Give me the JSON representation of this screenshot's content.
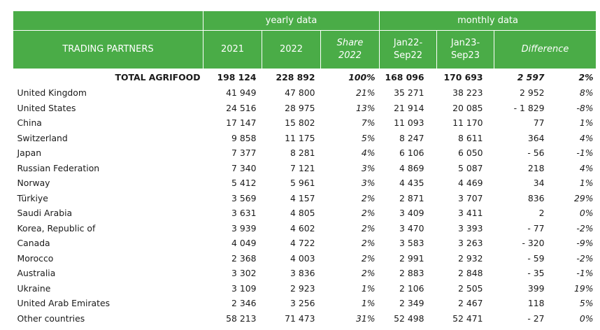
{
  "header": {
    "group_yearly": "yearly data",
    "group_monthly": "monthly data",
    "col_partners": "TRADING PARTNERS",
    "col_2021": "2021",
    "col_2022": "2022",
    "col_share_l1": "Share",
    "col_share_l2": "2022",
    "col_jan22_l1": "Jan22-",
    "col_jan22_l2": "Sep22",
    "col_jan23_l1": "Jan23-",
    "col_jan23_l2": "Sep23",
    "col_difference": "Difference"
  },
  "total": {
    "name": "TOTAL AGRIFOOD",
    "y2021": "198 124",
    "y2022": "228 892",
    "share": "100%",
    "m22": "168 096",
    "m23": "170 693",
    "diff": "2 597",
    "pct": "2%"
  },
  "rows": [
    {
      "name": "United Kingdom",
      "y2021": "41 949",
      "y2022": "47 800",
      "share": "21%",
      "m22": "35 271",
      "m23": "38 223",
      "diff": "2 952",
      "pct": "8%"
    },
    {
      "name": "United States",
      "y2021": "24 516",
      "y2022": "28 975",
      "share": "13%",
      "m22": "21 914",
      "m23": "20 085",
      "diff": "- 1 829",
      "pct": "-8%"
    },
    {
      "name": "China",
      "y2021": "17 147",
      "y2022": "15 802",
      "share": "7%",
      "m22": "11 093",
      "m23": "11 170",
      "diff": "77",
      "pct": "1%"
    },
    {
      "name": "Switzerland",
      "y2021": "9 858",
      "y2022": "11 175",
      "share": "5%",
      "m22": "8 247",
      "m23": "8 611",
      "diff": "364",
      "pct": "4%"
    },
    {
      "name": "Japan",
      "y2021": "7 377",
      "y2022": "8 281",
      "share": "4%",
      "m22": "6 106",
      "m23": "6 050",
      "diff": "- 56",
      "pct": "-1%"
    },
    {
      "name": "Russian Federation",
      "y2021": "7 340",
      "y2022": "7 121",
      "share": "3%",
      "m22": "4 869",
      "m23": "5 087",
      "diff": "218",
      "pct": "4%"
    },
    {
      "name": "Norway",
      "y2021": "5 412",
      "y2022": "5 961",
      "share": "3%",
      "m22": "4 435",
      "m23": "4 469",
      "diff": "34",
      "pct": "1%"
    },
    {
      "name": "Türkiye",
      "y2021": "3 569",
      "y2022": "4 157",
      "share": "2%",
      "m22": "2 871",
      "m23": "3 707",
      "diff": "836",
      "pct": "29%"
    },
    {
      "name": "Saudi Arabia",
      "y2021": "3 631",
      "y2022": "4 805",
      "share": "2%",
      "m22": "3 409",
      "m23": "3 411",
      "diff": "2",
      "pct": "0%"
    },
    {
      "name": "Korea, Republic of",
      "y2021": "3 939",
      "y2022": "4 602",
      "share": "2%",
      "m22": "3 470",
      "m23": "3 393",
      "diff": "- 77",
      "pct": "-2%"
    },
    {
      "name": "Canada",
      "y2021": "4 049",
      "y2022": "4 722",
      "share": "2%",
      "m22": "3 583",
      "m23": "3 263",
      "diff": "- 320",
      "pct": "-9%"
    },
    {
      "name": "Morocco",
      "y2021": "2 368",
      "y2022": "4 003",
      "share": "2%",
      "m22": "2 991",
      "m23": "2 932",
      "diff": "- 59",
      "pct": "-2%"
    },
    {
      "name": "Australia",
      "y2021": "3 302",
      "y2022": "3 836",
      "share": "2%",
      "m22": "2 883",
      "m23": "2 848",
      "diff": "- 35",
      "pct": "-1%"
    },
    {
      "name": "Ukraine",
      "y2021": "3 109",
      "y2022": "2 923",
      "share": "1%",
      "m22": "2 106",
      "m23": "2 505",
      "diff": "399",
      "pct": "19%"
    },
    {
      "name": "United Arab Emirates",
      "y2021": "2 346",
      "y2022": "3 256",
      "share": "1%",
      "m22": "2 349",
      "m23": "2 467",
      "diff": "118",
      "pct": "5%"
    },
    {
      "name": "Other countries",
      "y2021": "58 213",
      "y2022": "71 473",
      "share": "31%",
      "m22": "52 498",
      "m23": "52 471",
      "diff": "- 27",
      "pct": "0%"
    }
  ]
}
